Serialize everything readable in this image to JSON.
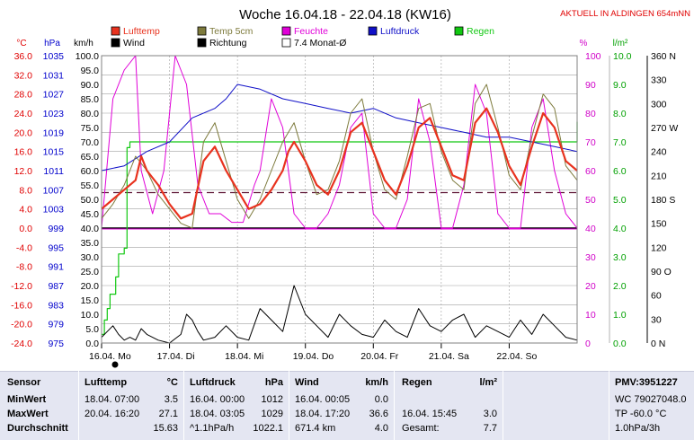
{
  "title": "Woche 16.04.18 - 22.04.18 (KW16)",
  "location_note": "AKTUELL IN ALDINGEN 654mNN",
  "colors": {
    "lufttemp": "#e8321e",
    "temp5cm": "#7d7a3c",
    "feuchte": "#e000d8",
    "luftdruck": "#1010c8",
    "regen": "#12c812",
    "wind": "#000000",
    "axis_temp": "#e00000",
    "axis_hpa": "#0000cc",
    "axis_kmh": "#000000",
    "axis_pct": "#d000c8",
    "axis_lm2": "#00a000",
    "axis_dir": "#000000",
    "grid": "#a0a0a0",
    "panel_bg": "#e4e6f2"
  },
  "legend": {
    "items": [
      {
        "label": "Lufttemp",
        "color": "#e8321e"
      },
      {
        "label": "Temp 5cm",
        "color": "#7d7a3c"
      },
      {
        "label": "Feuchte",
        "color": "#e000d8"
      },
      {
        "label": "Luftdruck",
        "color": "#1010c8"
      },
      {
        "label": "Regen",
        "color": "#12c812"
      },
      {
        "label": "Wind",
        "color": "#000000"
      },
      {
        "label": "Richtung",
        "color": "#000000"
      },
      {
        "label": "7.4 Monat-Ø",
        "color": "#ffffff"
      }
    ]
  },
  "axes": {
    "temp_unit": "°C",
    "hpa_unit": "hPa",
    "kmh_unit": "km/h",
    "pct_unit": "%",
    "lm2_unit": "l/m²",
    "temp_ticks": [
      "36.0",
      "32.0",
      "28.0",
      "24.0",
      "20.0",
      "16.0",
      "12.0",
      "8.0",
      "4.0",
      "0.0",
      "-4.0",
      "-8.0",
      "-12.0",
      "-16.0",
      "-20.0",
      "-24.0"
    ],
    "hpa_ticks": [
      "1035",
      "1031",
      "1027",
      "1023",
      "1019",
      "1015",
      "1011",
      "1007",
      "1003",
      "999",
      "995",
      "991",
      "987",
      "983",
      "979",
      "975"
    ],
    "kmh_ticks": [
      "100.0",
      "95.0",
      "90.0",
      "85.0",
      "80.0",
      "75.0",
      "70.0",
      "65.0",
      "60.0",
      "55.0",
      "50.0",
      "45.0",
      "40.0",
      "35.0",
      "30.0",
      "25.0",
      "20.0",
      "15.0",
      "10.0",
      "5.0",
      "0.0"
    ],
    "pct_ticks": [
      "100",
      "90",
      "80",
      "70",
      "60",
      "50",
      "40",
      "30",
      "20",
      "10",
      "0"
    ],
    "lm2_ticks": [
      "10.0",
      "9.0",
      "8.0",
      "7.0",
      "6.0",
      "5.0",
      "4.0",
      "3.0",
      "2.0",
      "1.0",
      "0.0"
    ],
    "dir_ticks": [
      "360 N",
      "330",
      "300",
      "270 W",
      "240",
      "210",
      "180 S",
      "150",
      "120",
      "90 O",
      "60",
      "30",
      "0 N"
    ],
    "day_labels": [
      "16.04. Mo",
      "17.04. Di",
      "18.04. Mi",
      "19.04. Do",
      "20.04. Fr",
      "21.04. Sa",
      "22.04. So"
    ]
  },
  "chart_data": {
    "type": "line",
    "title": "Woche 16.04.18 - 22.04.18 (KW16)",
    "x_hours_range": [
      0,
      168
    ],
    "x_labels": [
      "16.04. Mo",
      "17.04. Di",
      "18.04. Mi",
      "19.04. Do",
      "20.04. Fr",
      "21.04. Sa",
      "22.04. So"
    ],
    "ylim_temp": [
      -24,
      36
    ],
    "ylim_hpa": [
      975,
      1035
    ],
    "ylim_kmh": [
      0,
      100
    ],
    "ylim_pct": [
      0,
      100
    ],
    "ylim_lm2": [
      0,
      10
    ],
    "ylim_dir": [
      0,
      360
    ],
    "monthly_avg_temp": 7.4,
    "series": [
      {
        "name": "Lufttemp",
        "axis": "temp",
        "x": [
          0,
          4,
          8,
          12,
          14,
          16,
          20,
          24,
          28,
          32,
          36,
          40,
          44,
          48,
          52,
          56,
          60,
          64,
          66,
          68,
          72,
          76,
          80,
          84,
          88,
          92,
          96,
          100,
          104,
          108,
          112,
          116,
          120,
          124,
          128,
          132,
          136,
          140,
          144,
          148,
          152,
          156,
          160,
          164,
          168
        ],
        "values": [
          4,
          6,
          8,
          10,
          15,
          12,
          9,
          5,
          2,
          3,
          14,
          17,
          12,
          8,
          4,
          5,
          8,
          12,
          16,
          18,
          14,
          9,
          7,
          12,
          20,
          22,
          16,
          10,
          7,
          13,
          21,
          23,
          17,
          11,
          10,
          22,
          25,
          20,
          13,
          9,
          17,
          24,
          21,
          14,
          12
        ]
      },
      {
        "name": "Temp 5cm",
        "axis": "temp",
        "x": [
          0,
          4,
          8,
          12,
          16,
          20,
          24,
          28,
          32,
          36,
          40,
          44,
          48,
          52,
          56,
          60,
          64,
          68,
          72,
          76,
          80,
          84,
          88,
          92,
          96,
          100,
          104,
          108,
          112,
          116,
          120,
          124,
          128,
          132,
          136,
          140,
          144,
          148,
          152,
          156,
          160,
          164,
          168
        ],
        "values": [
          2,
          5,
          9,
          15,
          12,
          7,
          4,
          1,
          0,
          18,
          22,
          14,
          6,
          2,
          6,
          12,
          18,
          22,
          14,
          7,
          8,
          14,
          24,
          27,
          16,
          8,
          6,
          15,
          25,
          26,
          16,
          10,
          8,
          26,
          30,
          21,
          11,
          8,
          19,
          28,
          25,
          13,
          10
        ]
      },
      {
        "name": "Feuchte",
        "axis": "pct",
        "x": [
          0,
          4,
          8,
          12,
          14,
          18,
          22,
          26,
          30,
          34,
          38,
          42,
          46,
          50,
          54,
          56,
          60,
          64,
          68,
          72,
          76,
          80,
          84,
          88,
          92,
          96,
          100,
          104,
          108,
          112,
          116,
          120,
          124,
          128,
          132,
          136,
          140,
          144,
          148,
          152,
          156,
          160,
          164,
          168
        ],
        "values": [
          40,
          85,
          95,
          100,
          60,
          45,
          60,
          100,
          90,
          55,
          45,
          45,
          42,
          42,
          55,
          60,
          85,
          75,
          45,
          40,
          40,
          45,
          55,
          75,
          80,
          45,
          40,
          40,
          50,
          85,
          70,
          40,
          40,
          55,
          90,
          80,
          45,
          40,
          40,
          75,
          85,
          60,
          45,
          40
        ]
      },
      {
        "name": "Luftdruck",
        "axis": "hpa",
        "x": [
          0,
          8,
          16,
          24,
          32,
          40,
          44,
          48,
          56,
          64,
          72,
          80,
          88,
          96,
          104,
          112,
          120,
          128,
          136,
          144,
          152,
          160,
          168
        ],
        "values": [
          1011,
          1012,
          1015,
          1017,
          1022,
          1024,
          1026,
          1029,
          1028,
          1026,
          1025,
          1024,
          1023,
          1024,
          1022,
          1021,
          1020,
          1019,
          1018,
          1018,
          1017,
          1016,
          1015
        ]
      },
      {
        "name": "Regen",
        "axis": "lm2",
        "x": [
          0,
          1,
          2,
          3,
          4,
          5,
          6,
          7,
          8,
          9,
          10,
          12,
          14,
          168
        ],
        "values": [
          0.3,
          0.8,
          1.2,
          1.7,
          1.7,
          2.3,
          3.1,
          3.1,
          3.3,
          6.8,
          7.0,
          7.0,
          7.0,
          7.7
        ]
      },
      {
        "name": "Wind",
        "axis": "kmh",
        "x": [
          0,
          2,
          4,
          6,
          8,
          10,
          12,
          14,
          16,
          20,
          24,
          28,
          30,
          32,
          34,
          36,
          40,
          44,
          48,
          52,
          56,
          60,
          64,
          68,
          72,
          76,
          80,
          84,
          88,
          92,
          96,
          100,
          104,
          108,
          112,
          116,
          120,
          124,
          128,
          132,
          136,
          140,
          144,
          148,
          152,
          156,
          160,
          164,
          168
        ],
        "values": [
          2,
          4,
          6,
          3,
          1,
          2,
          1,
          5,
          3,
          1,
          0,
          3,
          10,
          8,
          4,
          1,
          2,
          6,
          2,
          1,
          12,
          8,
          4,
          20,
          10,
          6,
          2,
          10,
          6,
          3,
          2,
          8,
          4,
          2,
          12,
          6,
          4,
          8,
          10,
          2,
          6,
          4,
          2,
          8,
          3,
          10,
          6,
          2,
          1
        ]
      }
    ]
  },
  "stats_panel": {
    "sensor": {
      "header": "Sensor",
      "rows": [
        "MinWert",
        "MaxWert",
        "Durchschnitt"
      ]
    },
    "lufttemp": {
      "header": "Lufttemp",
      "unit": "°C",
      "min": {
        "when": "18.04.  07:00",
        "value": "3.5"
      },
      "max": {
        "when": "20.04.  16:20",
        "value": "27.1"
      },
      "avg": {
        "value": "15.63"
      }
    },
    "luftdruck": {
      "header": "Luftdruck",
      "unit": "hPa",
      "min": {
        "when": "16.04.  00:00",
        "value": "1012"
      },
      "max": {
        "when": "18.04.  03:05",
        "value": "1029"
      },
      "trend": {
        "label": "^1.1hPa/h",
        "value": "1022.1"
      }
    },
    "wind": {
      "header": "Wind",
      "unit": "km/h",
      "min": {
        "when": "16.04.  00:05",
        "value": "0.0"
      },
      "max": {
        "when": "18.04.  17:20",
        "value": "36.6"
      },
      "total": {
        "label": "671.4 km",
        "value": "4.0"
      }
    },
    "regen": {
      "header": "Regen",
      "unit": "l/m²",
      "max": {
        "when": "16.04.  15:45",
        "value": "3.0"
      },
      "total": {
        "label": "Gesamt:",
        "value": "7.7"
      }
    },
    "pmv": {
      "header": "PMV:3951227",
      "lines": [
        "WC 79027048.0",
        "TP -60.0 °C",
        "1.0hPa/3h"
      ]
    }
  }
}
